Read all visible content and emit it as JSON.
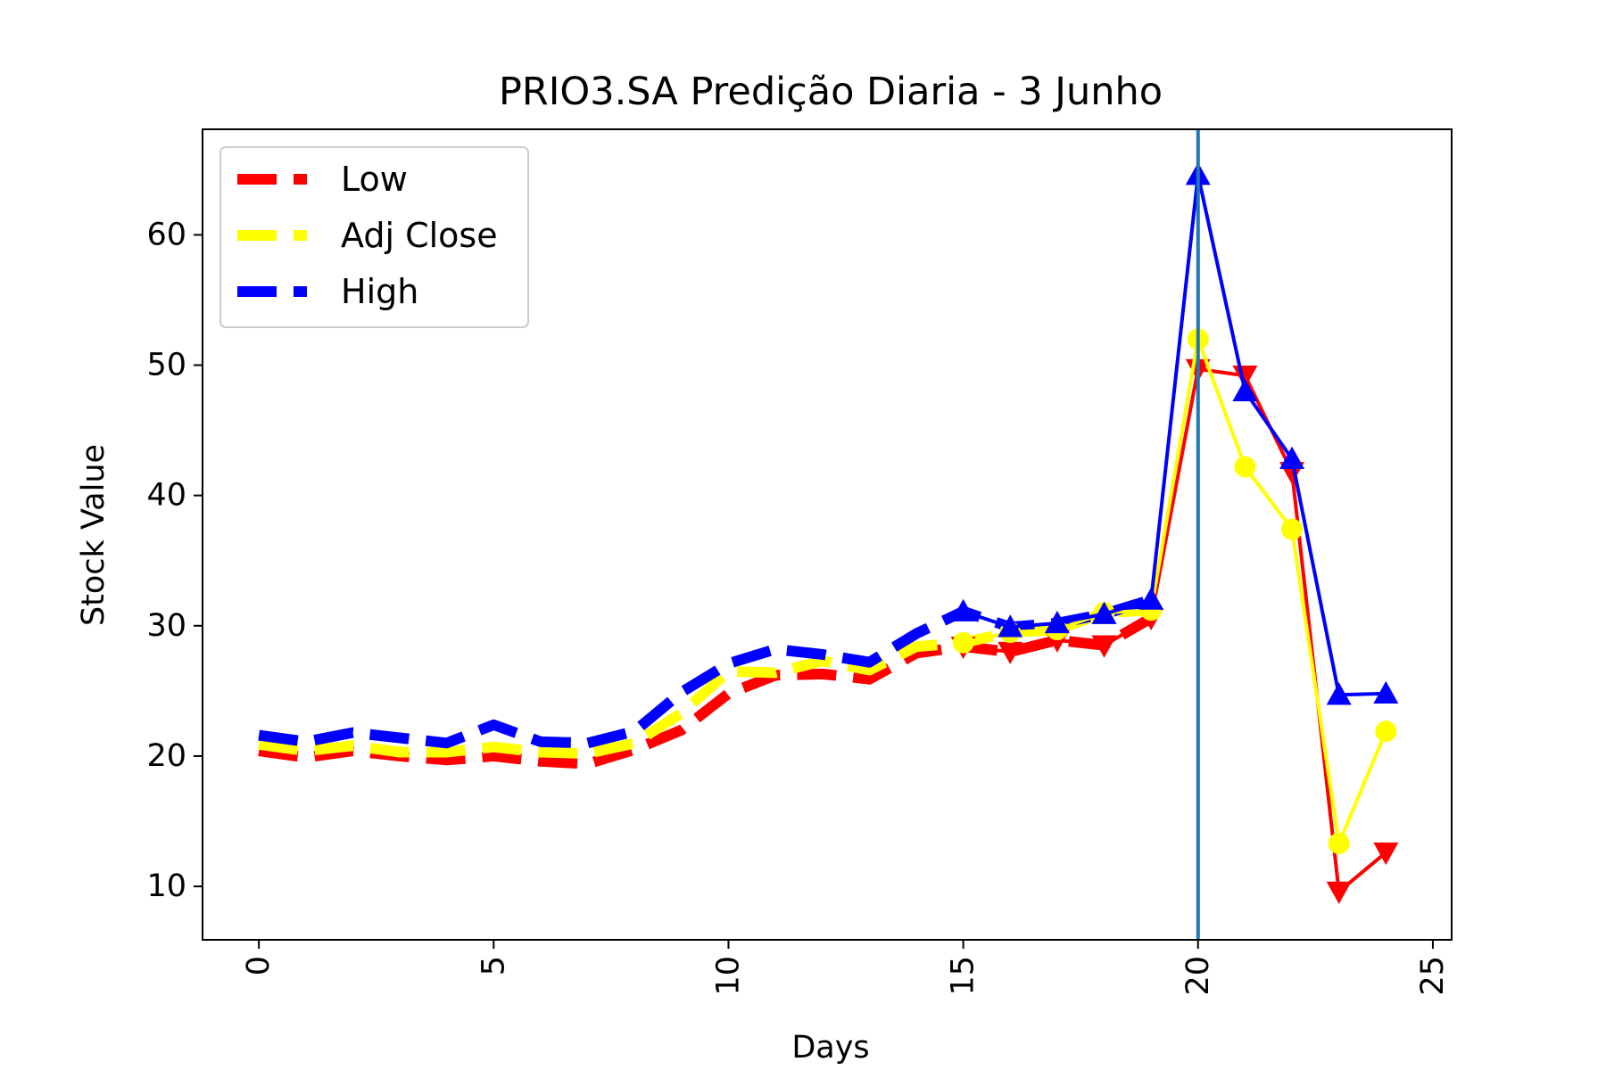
{
  "chart_data": {
    "type": "line",
    "title": "PRIO3.SA Predição Diaria - 3 Junho",
    "xlabel": "Days",
    "ylabel": "Stock Value",
    "xlim": [
      -1.2,
      25.4
    ],
    "ylim": [
      5.9,
      68.1
    ],
    "xticks": [
      0,
      5,
      10,
      15,
      20,
      25
    ],
    "yticks": [
      10,
      20,
      30,
      40,
      50,
      60
    ],
    "grid": false,
    "legend_position": "top-left",
    "vline_x": 20,
    "vline_color": "#1f77b4",
    "x": [
      0,
      1,
      2,
      3,
      4,
      5,
      6,
      7,
      8,
      9,
      10,
      11,
      12,
      13,
      14,
      15,
      16,
      17,
      18,
      19,
      20,
      21,
      22,
      23,
      24
    ],
    "history_count": 20,
    "series": [
      {
        "name": "Low",
        "color": "#ff0000",
        "marker": "triangle-down",
        "values": [
          20.4,
          19.9,
          20.4,
          20.0,
          19.7,
          20.0,
          19.6,
          19.4,
          20.5,
          22.0,
          24.8,
          26.2,
          26.3,
          25.9,
          27.9,
          28.4,
          28.0,
          28.9,
          28.5,
          30.6,
          49.7,
          49.2,
          41.8,
          9.6,
          12.6
        ]
      },
      {
        "name": "Adj Close",
        "color": "#ffff00",
        "marker": "circle",
        "values": [
          20.9,
          20.4,
          20.8,
          20.3,
          20.3,
          20.7,
          20.3,
          20.2,
          21.0,
          23.3,
          26.5,
          26.4,
          27.3,
          26.6,
          28.4,
          28.7,
          29.5,
          29.7,
          31.0,
          31.2,
          52.0,
          42.2,
          37.4,
          13.3,
          21.9
        ]
      },
      {
        "name": "High",
        "color": "#0000ff",
        "marker": "triangle-up",
        "values": [
          21.6,
          21.1,
          21.8,
          21.4,
          21.0,
          22.4,
          21.1,
          21.0,
          21.9,
          24.9,
          27.1,
          28.2,
          27.8,
          27.2,
          29.4,
          31.1,
          29.9,
          30.2,
          30.9,
          32.0,
          64.6,
          48.0,
          42.8,
          24.7,
          24.8
        ]
      }
    ]
  }
}
